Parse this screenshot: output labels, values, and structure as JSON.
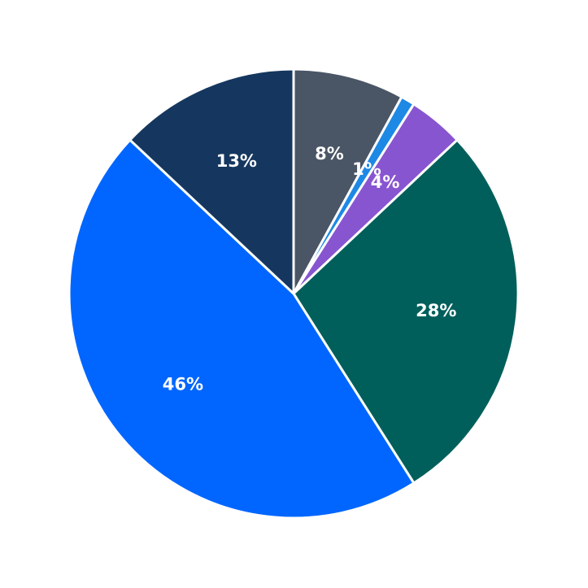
{
  "chart_data": {
    "type": "pie",
    "values": [
      8,
      1,
      4,
      28,
      46,
      13
    ],
    "value_labels": [
      "8%",
      "1%",
      "4%",
      "28%",
      "46%",
      "13%"
    ],
    "colors": [
      "#4a5565",
      "#1e88e5",
      "#8855d0",
      "#005f5b",
      "#0066ff",
      "#15375f"
    ]
  }
}
